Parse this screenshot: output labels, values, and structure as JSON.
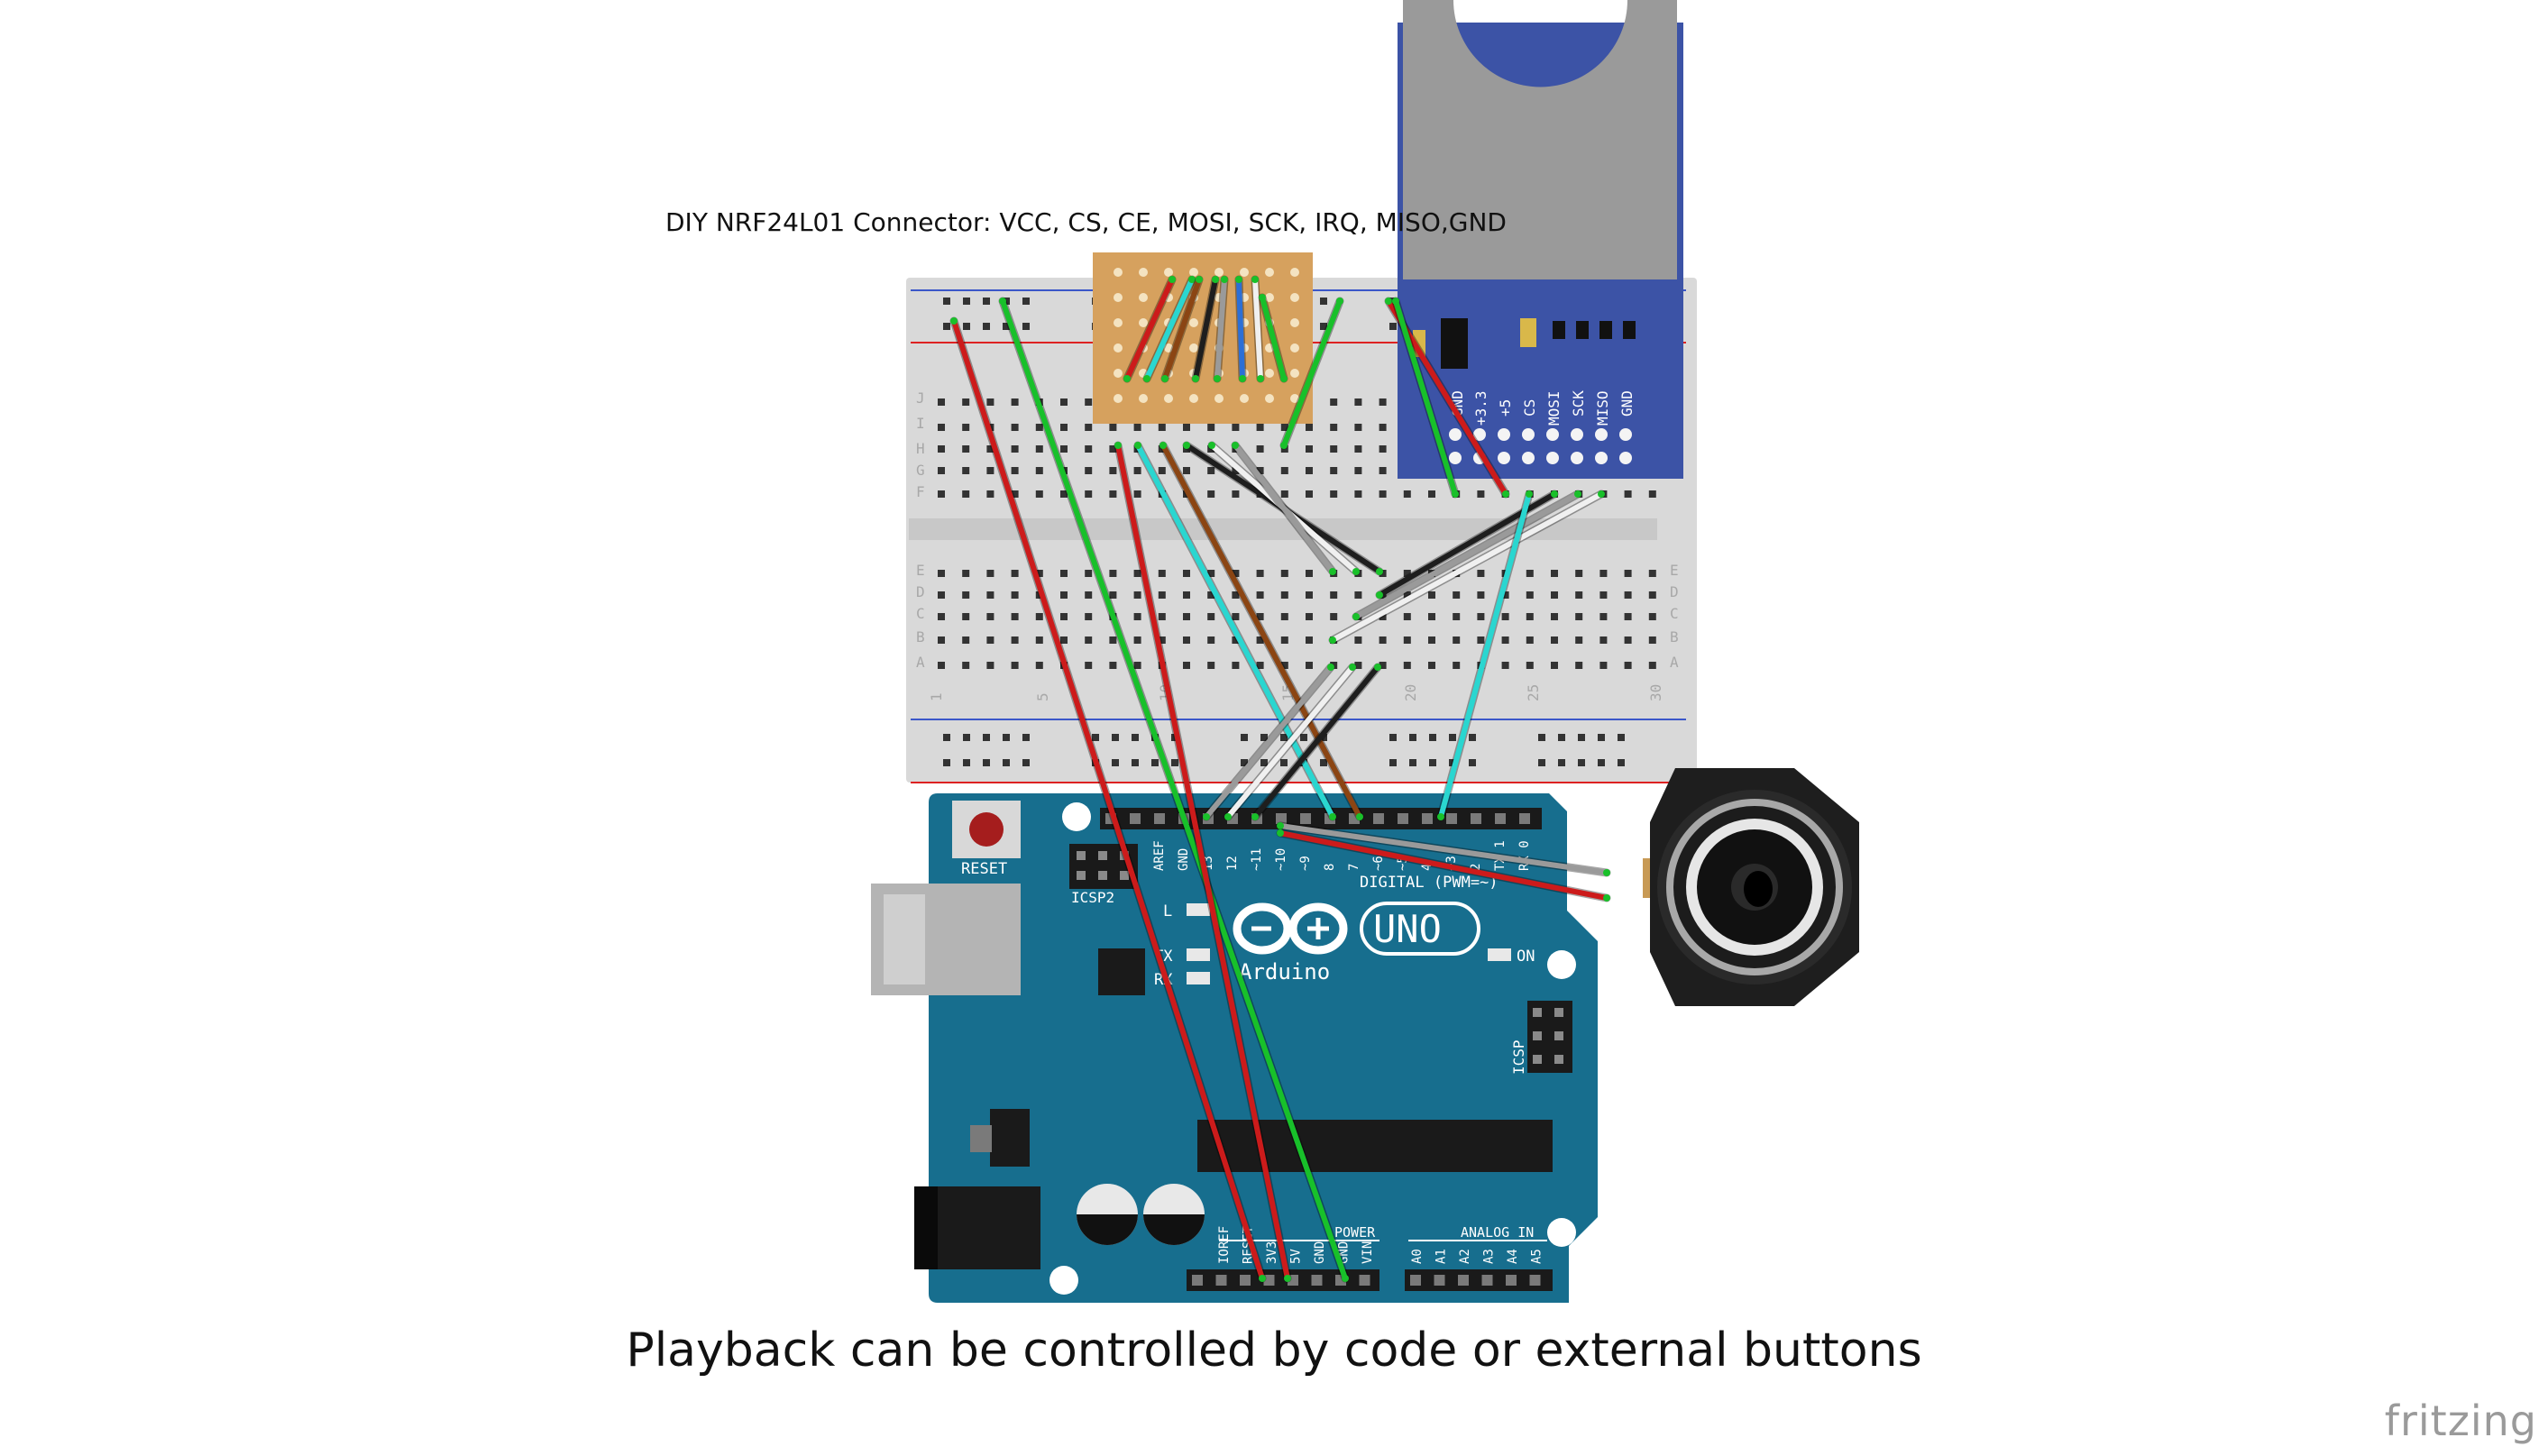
{
  "captions": {
    "connector": "DIY NRF24L01 Connector: VCC, CS, CE, MOSI, SCK, IRQ, MISO,GND",
    "bottom": "Playback can be controlled by code or external buttons",
    "watermark": "fritzing"
  },
  "breadboard": {
    "row_letters_top": [
      "J",
      "I",
      "H",
      "G",
      "F"
    ],
    "row_letters_bottom": [
      "E",
      "D",
      "C",
      "B",
      "A"
    ],
    "col_numbers": [
      "1",
      "5",
      "10",
      "15",
      "20",
      "25",
      "30"
    ]
  },
  "sd_module": {
    "pins": [
      "GND",
      "+3.3",
      "+5",
      "CS",
      "MOSI",
      "SCK",
      "MISO",
      "GND"
    ]
  },
  "arduino": {
    "reset_label": "RESET",
    "icsp2_label": "ICSP2",
    "icsp_label": "ICSP",
    "brand": "Arduino",
    "model": "UNO",
    "digital_label": "DIGITAL (PWM=~)",
    "on_label": "ON",
    "tx_label": "TX",
    "rx_label": "RX",
    "l_label": "L",
    "power_label": "POWER",
    "analog_label": "ANALOG IN",
    "digital_pins": [
      "AREF",
      "GND",
      "13",
      "12",
      "~11",
      "~10",
      "~9",
      "8",
      "7",
      "~6",
      "~5",
      "4",
      "~3",
      "2",
      "TX 1",
      "RX 0"
    ],
    "power_pins": [
      "IOREF",
      "RESET",
      "3V3",
      "5V",
      "GND",
      "GND",
      "VIN"
    ],
    "analog_pins": [
      "A0",
      "A1",
      "A2",
      "A3",
      "A4",
      "A5"
    ]
  },
  "colors": {
    "breadboard": "#d9d9d9",
    "arduino_board": "#176e8e",
    "sd_board": "#3c53a6",
    "wire_red": "#cc1b1b",
    "wire_green": "#18c02a",
    "wire_cyan": "#2ad6d0",
    "wire_black": "#1e1e1e",
    "wire_white": "#f0f0f0",
    "wire_gray": "#9a9a9a",
    "wire_brown": "#8b4513",
    "wire_blue": "#2c6fd6"
  }
}
